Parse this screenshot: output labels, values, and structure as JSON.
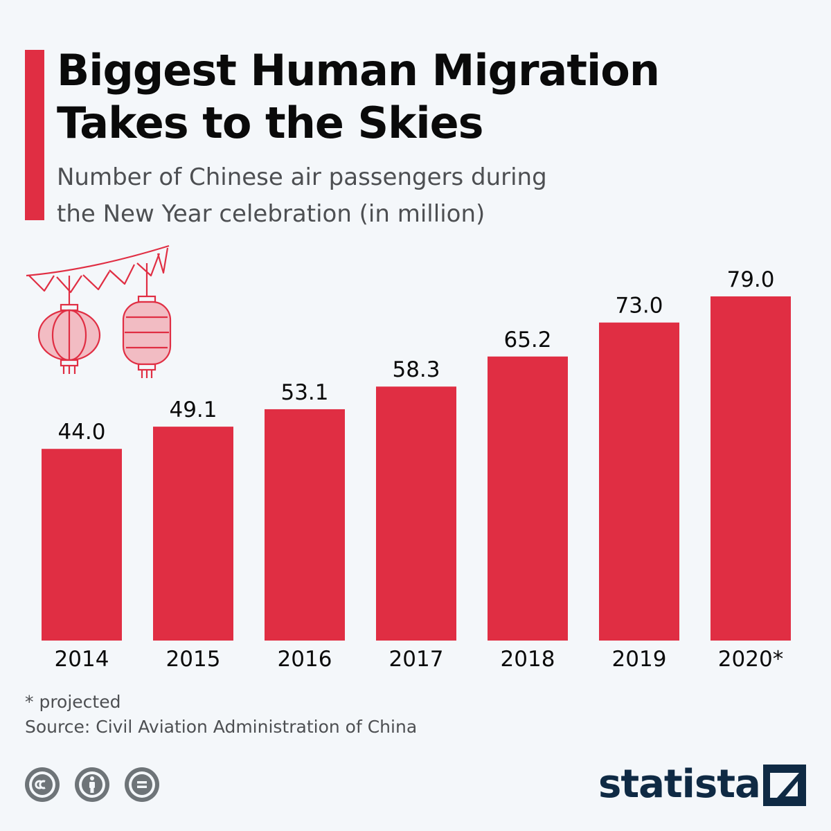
{
  "header": {
    "title_line1": "Biggest Human Migration",
    "title_line2": "Takes to the Skies",
    "subtitle_line1": "Number of Chinese air passengers during",
    "subtitle_line2": "the New Year celebration (in million)"
  },
  "chart_data": {
    "type": "bar",
    "title": "Biggest Human Migration Takes to the Skies",
    "subtitle": "Number of Chinese air passengers during the New Year celebration (in million)",
    "categories": [
      "2014",
      "2015",
      "2016",
      "2017",
      "2018",
      "2019",
      "2020*"
    ],
    "values": [
      44.0,
      49.1,
      53.1,
      58.3,
      65.2,
      73.0,
      79.0
    ],
    "value_labels": [
      "44.0",
      "49.1",
      "53.1",
      "58.3",
      "65.2",
      "73.0",
      "79.0"
    ],
    "ylim": [
      0,
      79.0
    ],
    "grid": false,
    "bar_color": "#e02e43"
  },
  "footer": {
    "note": "* projected",
    "source": "Source: Civil Aviation Administration of China",
    "brand": "statista"
  },
  "icons": {
    "decoration": "lantern-icon",
    "license": [
      "creative-commons-icon",
      "attribution-icon",
      "no-derivatives-icon"
    ],
    "brand_mark": "statista-logo-icon"
  },
  "colors": {
    "accent": "#e02e43",
    "background": "#f4f7fa",
    "brand": "#0f2a44",
    "icon_gray": "#6e7478"
  }
}
